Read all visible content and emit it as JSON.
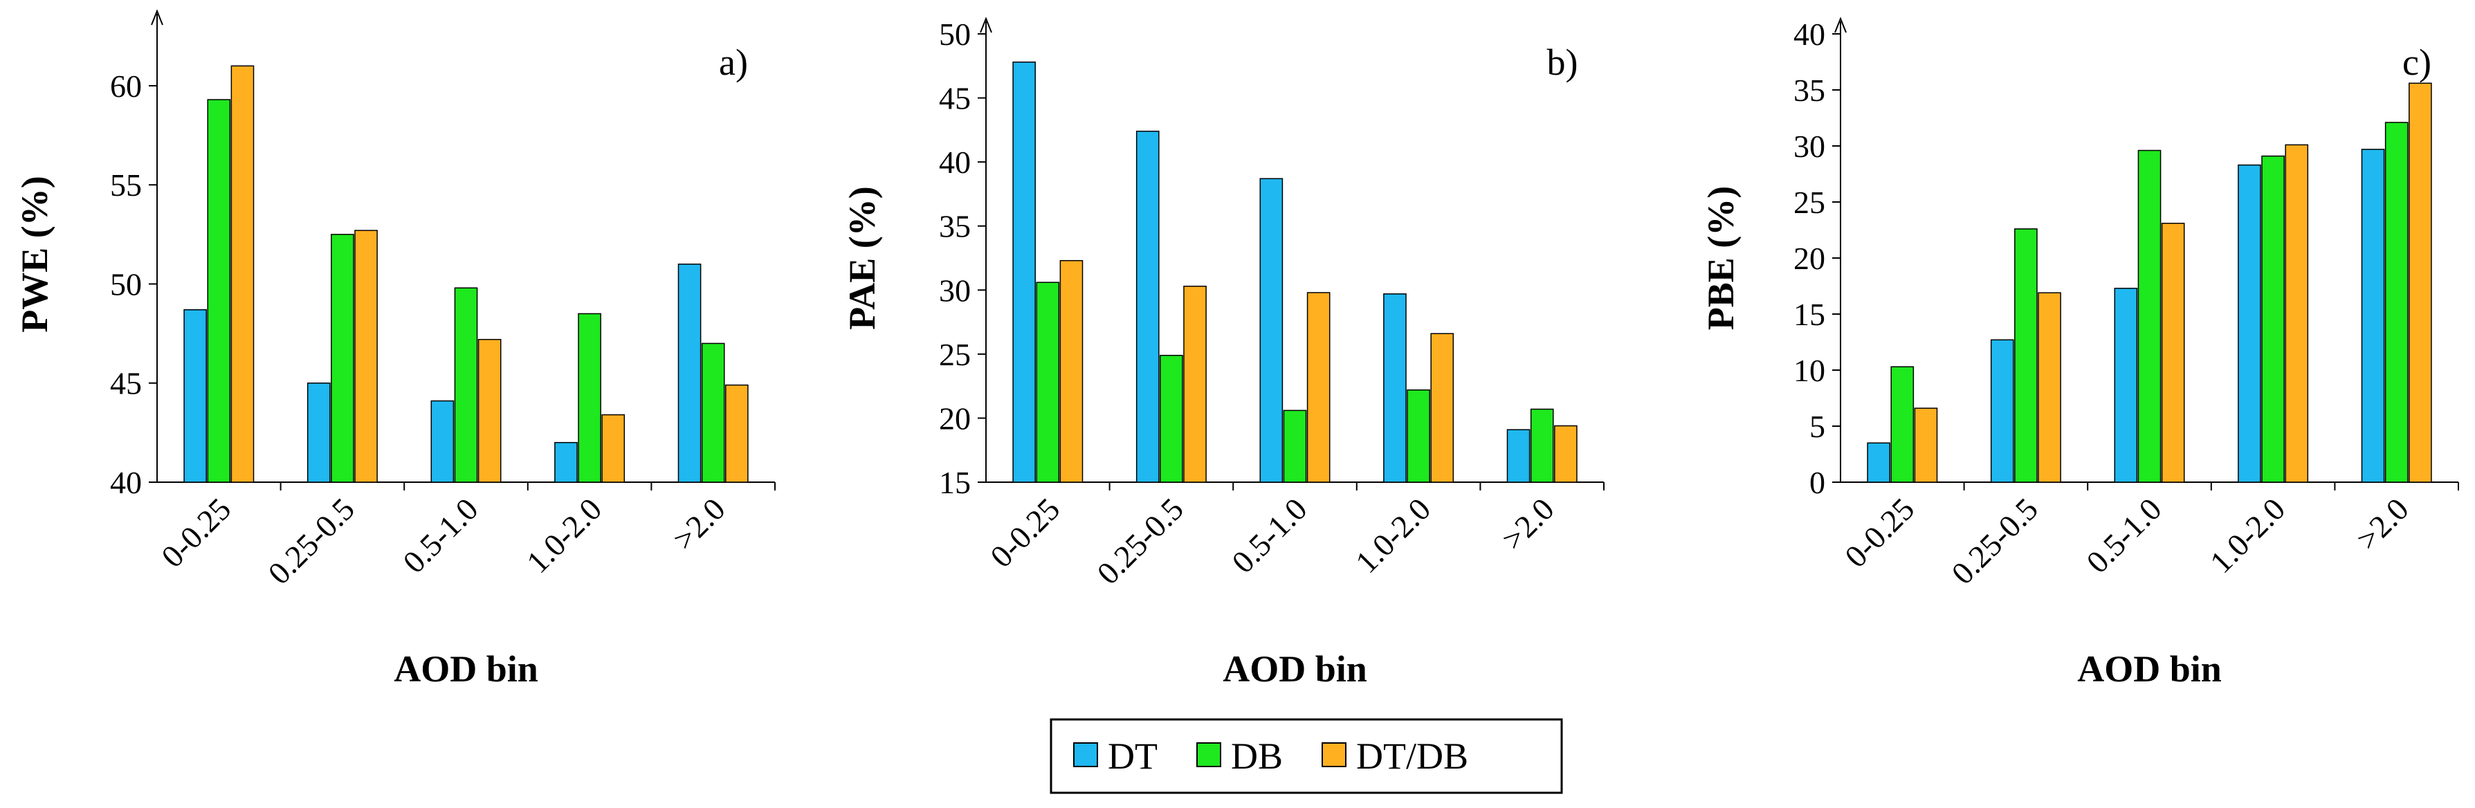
{
  "colors": {
    "DT": "#1fb8f0",
    "DB": "#1ee81e",
    "DT/DB": "#ffb020"
  },
  "legend": [
    "DT",
    "DB",
    "DT/DB"
  ],
  "chart_data": [
    {
      "type": "bar",
      "panel_label": "a)",
      "title": "",
      "xlabel": "AOD bin",
      "ylabel": "PWE (%)",
      "ylim": [
        40,
        63
      ],
      "yticks": [
        40,
        45,
        50,
        55,
        60
      ],
      "categories": [
        "0-0.25",
        "0.25-0.5",
        "0.5-1.0",
        "1.0-2.0",
        ">2.0"
      ],
      "series": [
        {
          "name": "DT",
          "values": [
            48.7,
            45.0,
            44.1,
            42.0,
            51.0
          ]
        },
        {
          "name": "DB",
          "values": [
            59.3,
            52.5,
            49.8,
            48.5,
            47.0
          ]
        },
        {
          "name": "DT/DB",
          "values": [
            61.0,
            52.7,
            47.2,
            43.4,
            44.9
          ]
        }
      ]
    },
    {
      "type": "bar",
      "panel_label": "b)",
      "title": "",
      "xlabel": "AOD bin",
      "ylabel": "PAE (%)",
      "ylim": [
        15,
        50
      ],
      "yticks": [
        15,
        20,
        25,
        30,
        35,
        40,
        45,
        50
      ],
      "categories": [
        "0-0.25",
        "0.25-0.5",
        "0.5-1.0",
        "1.0-2.0",
        ">2.0"
      ],
      "series": [
        {
          "name": "DT",
          "values": [
            47.8,
            42.4,
            38.7,
            29.7,
            19.1
          ]
        },
        {
          "name": "DB",
          "values": [
            30.6,
            24.9,
            20.6,
            22.2,
            20.7
          ]
        },
        {
          "name": "DT/DB",
          "values": [
            32.3,
            30.3,
            29.8,
            26.6,
            19.4
          ]
        }
      ]
    },
    {
      "type": "bar",
      "panel_label": "c)",
      "title": "",
      "xlabel": "AOD bin",
      "ylabel": "PBE (%)",
      "ylim": [
        0,
        40
      ],
      "yticks": [
        0,
        5,
        10,
        15,
        20,
        25,
        30,
        35,
        40
      ],
      "categories": [
        "0-0.25",
        "0.25-0.5",
        "0.5-1.0",
        "1.0-2.0",
        ">2.0"
      ],
      "series": [
        {
          "name": "DT",
          "values": [
            3.5,
            12.7,
            17.3,
            28.3,
            29.7
          ]
        },
        {
          "name": "DB",
          "values": [
            10.3,
            22.6,
            29.6,
            29.1,
            32.1
          ]
        },
        {
          "name": "DT/DB",
          "values": [
            6.6,
            16.9,
            23.1,
            30.1,
            35.6
          ]
        }
      ]
    }
  ]
}
